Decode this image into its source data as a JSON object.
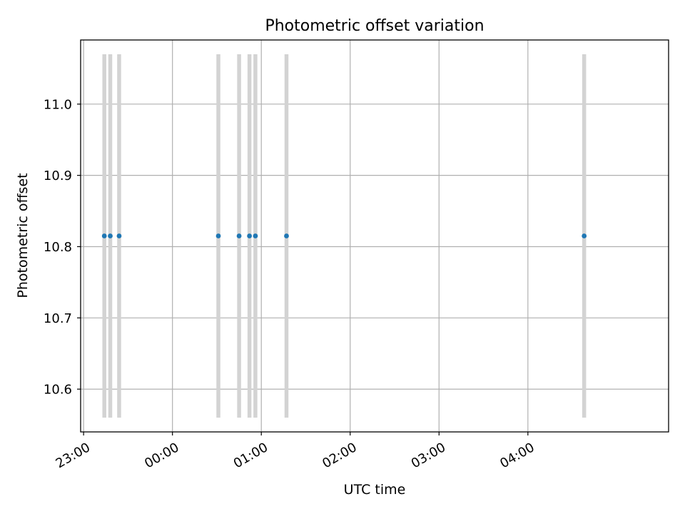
{
  "chart_data": {
    "type": "scatter",
    "title": "Photometric offset variation",
    "xlabel": "UTC time",
    "ylabel": "Photometric offset",
    "x_ticks": [
      "23:00",
      "00:00",
      "01:00",
      "02:00",
      "03:00",
      "04:00"
    ],
    "y_ticks": [
      "10.6",
      "10.7",
      "10.8",
      "10.9",
      "11.0"
    ],
    "y_tick_values": [
      10.6,
      10.7,
      10.8,
      10.9,
      11.0
    ],
    "xlim": [
      "22:58",
      "05:35"
    ],
    "ylim": [
      10.54,
      11.09
    ],
    "grid": true,
    "colors": {
      "points": "#1f77b4",
      "error_bars": "#d3d3d3",
      "grid": "#b0b0b0"
    },
    "points": [
      {
        "time": "23:14",
        "y": 10.815,
        "y_low": 10.56,
        "y_high": 11.07
      },
      {
        "time": "23:18",
        "y": 10.815,
        "y_low": 10.56,
        "y_high": 11.07
      },
      {
        "time": "23:24",
        "y": 10.815,
        "y_low": 10.56,
        "y_high": 11.07
      },
      {
        "time": "00:31",
        "y": 10.815,
        "y_low": 10.56,
        "y_high": 11.07
      },
      {
        "time": "00:45",
        "y": 10.815,
        "y_low": 10.56,
        "y_high": 11.07
      },
      {
        "time": "00:52",
        "y": 10.815,
        "y_low": 10.56,
        "y_high": 11.07
      },
      {
        "time": "00:56",
        "y": 10.815,
        "y_low": 10.56,
        "y_high": 11.07
      },
      {
        "time": "01:17",
        "y": 10.815,
        "y_low": 10.56,
        "y_high": 11.07
      },
      {
        "time": "04:38",
        "y": 10.815,
        "y_low": 10.56,
        "y_high": 11.07
      }
    ]
  }
}
